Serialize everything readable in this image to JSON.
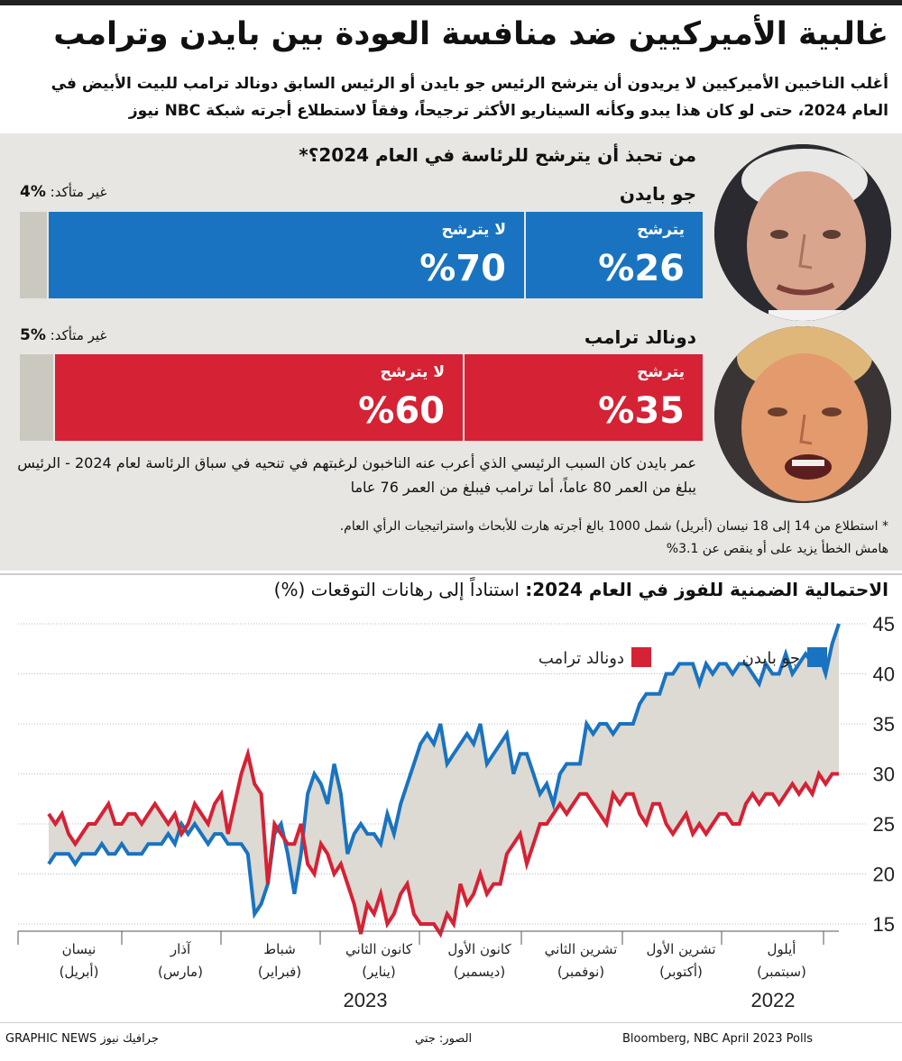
{
  "title": "غالبية الأميركيين ضد منافسة العودة بين بايدن وترامب",
  "subtitle": "أغلب الناخبين الأميركيين لا يريدون أن يترشح الرئيس جو بايدن أو الرئيس السابق دونالد ترامب للبيت الأبيض في العام 2024، حتى لو كان هذا يبدو وكأنه السيناريو الأكثر ترجيحاً، وفقاً لاستطلاع أجرته شبكة NBC نيوز",
  "question": "من تحبذ أن يترشح للرئاسة في العام 2024؟*",
  "unsure_label": "غير متأكد:",
  "biden": {
    "name": "جو بايدن",
    "run_label": "يترشح",
    "run_value": "%26",
    "norun_label": "لا يترشح",
    "norun_value": "%70",
    "unsure_value": "%4",
    "color": "#1a73c0"
  },
  "trump": {
    "name": "دونالد ترامب",
    "run_label": "يترشح",
    "run_value": "%35",
    "norun_label": "لا يترشح",
    "norun_value": "%60",
    "unsure_value": "%5",
    "color": "#d52235"
  },
  "note": "عمر بايدن كان السبب الرئيسي الذي أعرب عنه الناخبون لرغبتهم في تنحيه في سباق الرئاسة لعام 2024 - الرئيس يبلغ من العمر 80 عاماً، أما ترامب فيبلغ من العمر 76 عاما",
  "footnote_1": "* استطلاع من 14 إلى 18 نيسان (أبريل) شمل 1000 بالغ أجرته هارت للأبحاث واستراتيجيات الرأي العام.",
  "footnote_2": "هامش الخطأ يزيد على أو ينقص عن 3.1%",
  "chart_title_bold": "الاحتمالية الضمنية للفوز في العام 2024:",
  "chart_title_rest": "استناداً إلى رهانات التوقعات (%)",
  "source": "Bloomberg, NBC April 2023 Polls",
  "photos_credit": "الصور: جتي",
  "brand": "GRAPHIC NEWS جرافيك نيوز",
  "chart_data": {
    "type": "line",
    "ylim": [
      15,
      45
    ],
    "yticks": [
      15,
      20,
      25,
      30,
      35,
      40,
      45
    ],
    "months": [
      {
        "ar": "نيسان",
        "en": "(أبريل)"
      },
      {
        "ar": "آذار",
        "en": "(مارس)"
      },
      {
        "ar": "شباط",
        "en": "(فبراير)"
      },
      {
        "ar": "كانون الثاني",
        "en": "(يناير)"
      },
      {
        "ar": "كانون الأول",
        "en": "(ديسمبر)"
      },
      {
        "ar": "تشرين الثاني",
        "en": "(نوفمبر)"
      },
      {
        "ar": "تشرين الأول",
        "en": "(أكتوبر)"
      },
      {
        "ar": "أيلول",
        "en": "(سبتمبر)"
      }
    ],
    "year_2023": "2023",
    "year_2022": "2022",
    "series": [
      {
        "name": "جو بايدن",
        "color": "#1a73c0",
        "values": [
          21,
          22,
          22,
          22,
          21,
          22,
          22,
          22,
          23,
          22,
          22,
          23,
          22,
          22,
          22,
          23,
          23,
          23,
          24,
          23,
          25,
          24,
          25,
          24,
          23,
          24,
          24,
          23,
          23,
          23,
          22,
          16,
          17,
          19,
          24,
          25,
          22,
          18,
          22,
          28,
          30,
          29,
          27,
          31,
          28,
          22,
          24,
          25,
          24,
          24,
          23,
          26,
          24,
          27,
          29,
          31,
          33,
          34,
          33,
          35,
          31,
          32,
          33,
          34,
          33,
          35,
          31,
          32,
          33,
          34,
          30,
          32,
          32,
          30,
          28,
          29,
          27,
          30,
          31,
          31,
          31,
          35,
          34,
          35,
          35,
          34,
          35,
          35,
          35,
          37,
          38,
          38,
          38,
          40,
          40,
          41,
          41,
          41,
          39,
          41,
          40,
          41,
          41,
          40,
          41,
          41,
          40,
          39,
          41,
          40,
          40,
          42,
          40,
          41,
          42,
          41,
          42,
          40,
          43,
          45
        ]
      },
      {
        "name": "دونالد ترامب",
        "color": "#d52235",
        "values": [
          26,
          25,
          26,
          24,
          23,
          24,
          25,
          25,
          26,
          27,
          25,
          25,
          26,
          26,
          25,
          26,
          27,
          26,
          25,
          26,
          24,
          25,
          27,
          26,
          25,
          27,
          28,
          24,
          27,
          30,
          32,
          29,
          28,
          19,
          25,
          24,
          23,
          23,
          25,
          21,
          20,
          23,
          22,
          20,
          21,
          19,
          17,
          14,
          17,
          16,
          18,
          15,
          16,
          18,
          19,
          16,
          15,
          15,
          15,
          14,
          16,
          15,
          19,
          17,
          18,
          20,
          18,
          19,
          19,
          22,
          23,
          24,
          21,
          23,
          25,
          25,
          26,
          27,
          26,
          27,
          28,
          28,
          27,
          26,
          25,
          28,
          27,
          28,
          28,
          26,
          25,
          27,
          27,
          25,
          24,
          25,
          26,
          24,
          25,
          24,
          25,
          26,
          26,
          25,
          25,
          27,
          28,
          27,
          28,
          28,
          27,
          28,
          29,
          28,
          29,
          28,
          30,
          29,
          30,
          30
        ]
      }
    ]
  }
}
